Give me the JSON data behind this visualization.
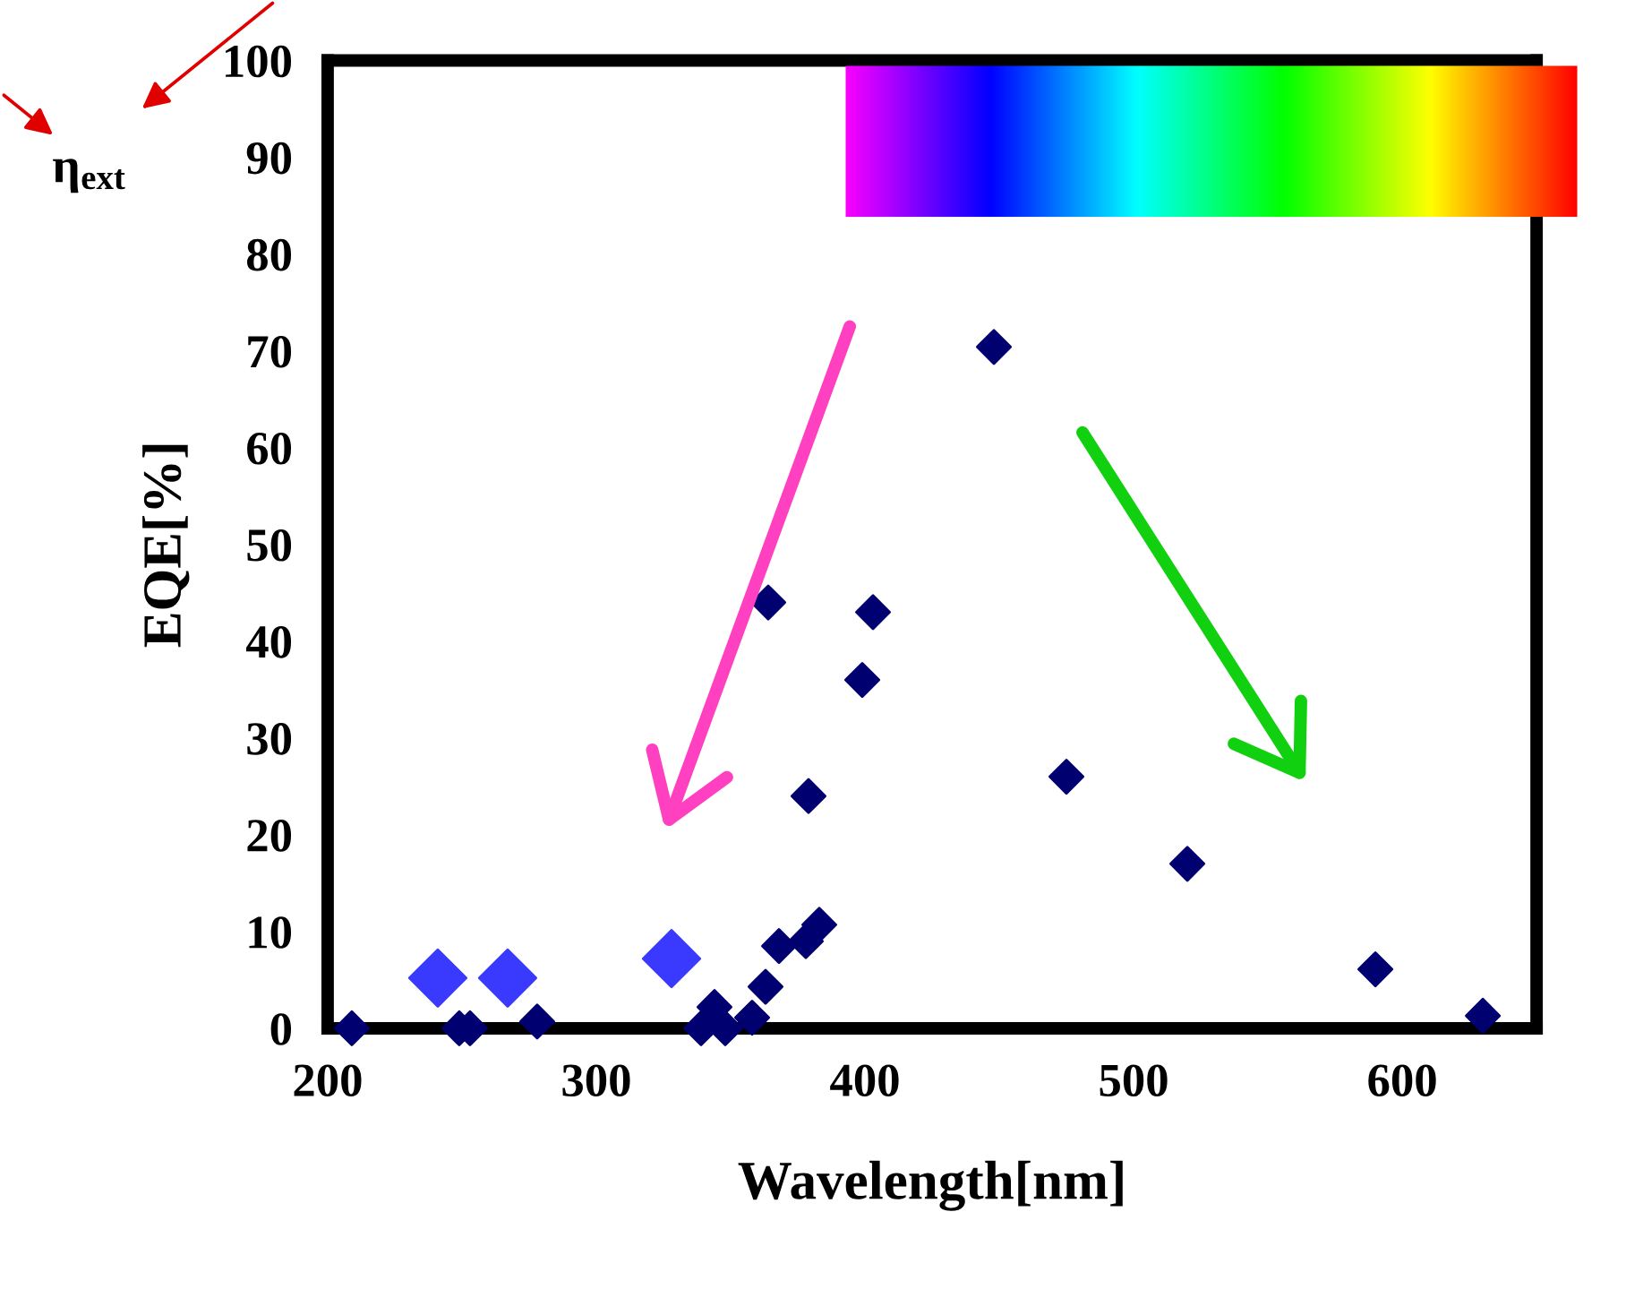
{
  "chart_data": {
    "type": "scatter",
    "xlabel": "Wavelength[nm]",
    "ylabel": "EQE[%]",
    "annotations": [
      "η$_{ext}$"
    ],
    "xlim": [
      200,
      650
    ],
    "xticks": [
      200,
      300,
      400,
      500,
      600
    ],
    "ylim": [
      0,
      100
    ],
    "yticks": [
      0,
      10,
      20,
      30,
      40,
      50,
      60,
      70,
      80,
      90,
      100
    ],
    "grid": false,
    "legend": false,
    "marker": "diamond",
    "series": [
      {
        "color": "#000070",
        "x": [
          209,
          249,
          253,
          278,
          339,
          344,
          348,
          358,
          363,
          364,
          368,
          378,
          379,
          383,
          399,
          403,
          448,
          475,
          520,
          590,
          630
        ],
        "values": [
          0,
          0,
          0,
          0.7,
          0,
          2.2,
          0,
          1.1,
          4.3,
          44,
          8.5,
          9,
          24,
          10.7,
          36,
          43,
          70.4,
          26,
          17,
          6.1,
          1.3
        ]
      },
      {
        "color": "#3a3aff",
        "x": [
          241,
          267,
          328
        ],
        "values": [
          5.2,
          5.2,
          7.2
        ]
      }
    ]
  }
}
